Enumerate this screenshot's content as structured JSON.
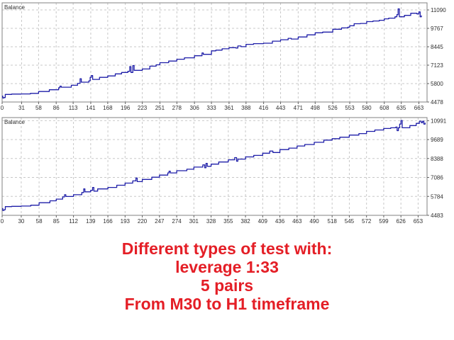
{
  "chart_data": [
    {
      "type": "line",
      "title": "Balance",
      "xlabel": "",
      "ylabel": "",
      "xlim": [
        0,
        676
      ],
      "ylim": [
        4478,
        11600
      ],
      "xticks": [
        0,
        31,
        58,
        86,
        113,
        141,
        168,
        196,
        223,
        251,
        278,
        306,
        333,
        361,
        388,
        416,
        443,
        471,
        498,
        526,
        553,
        580,
        608,
        635,
        663
      ],
      "yticks": [
        4478,
        5800,
        7123,
        8445,
        9767,
        11090
      ],
      "grid": true,
      "line_color": "#1e1ea8",
      "series": [
        {
          "values": [
            [
              0,
              4900
            ],
            [
              1,
              4770
            ],
            [
              3,
              4800
            ],
            [
              5,
              5020
            ],
            [
              15,
              5050
            ],
            [
              30,
              5060
            ],
            [
              45,
              5100
            ],
            [
              58,
              5230
            ],
            [
              75,
              5360
            ],
            [
              90,
              5500
            ],
            [
              92,
              5620
            ],
            [
              94,
              5540
            ],
            [
              110,
              5680
            ],
            [
              120,
              5820
            ],
            [
              124,
              6150
            ],
            [
              126,
              5900
            ],
            [
              138,
              6000
            ],
            [
              140,
              6250
            ],
            [
              142,
              6380
            ],
            [
              144,
              6100
            ],
            [
              155,
              6250
            ],
            [
              168,
              6350
            ],
            [
              180,
              6500
            ],
            [
              190,
              6600
            ],
            [
              200,
              6680
            ],
            [
              203,
              7020
            ],
            [
              205,
              6600
            ],
            [
              208,
              7100
            ],
            [
              210,
              6750
            ],
            [
              223,
              6850
            ],
            [
              235,
              7050
            ],
            [
              245,
              7150
            ],
            [
              251,
              7300
            ],
            [
              265,
              7420
            ],
            [
              278,
              7550
            ],
            [
              290,
              7650
            ],
            [
              306,
              7800
            ],
            [
              318,
              8000
            ],
            [
              320,
              7900
            ],
            [
              333,
              8150
            ],
            [
              340,
              8200
            ],
            [
              350,
              8300
            ],
            [
              361,
              8380
            ],
            [
              372,
              8350
            ],
            [
              375,
              8500
            ],
            [
              380,
              8450
            ],
            [
              388,
              8620
            ],
            [
              400,
              8670
            ],
            [
              416,
              8700
            ],
            [
              430,
              8850
            ],
            [
              443,
              8950
            ],
            [
              455,
              9050
            ],
            [
              460,
              9000
            ],
            [
              471,
              9150
            ],
            [
              485,
              9300
            ],
            [
              498,
              9450
            ],
            [
              510,
              9500
            ],
            [
              526,
              9700
            ],
            [
              540,
              9800
            ],
            [
              550,
              9850
            ],
            [
              553,
              9950
            ],
            [
              560,
              10100
            ],
            [
              570,
              10120
            ],
            [
              580,
              10250
            ],
            [
              590,
              10300
            ],
            [
              600,
              10350
            ],
            [
              608,
              10450
            ],
            [
              615,
              10500
            ],
            [
              625,
              10600
            ],
            [
              628,
              10750
            ],
            [
              630,
              11170
            ],
            [
              632,
              10600
            ],
            [
              640,
              10700
            ],
            [
              650,
              10850
            ],
            [
              660,
              10800
            ],
            [
              663,
              10950
            ],
            [
              665,
              10600
            ],
            [
              667,
              10700
            ]
          ]
        }
      ]
    },
    {
      "type": "line",
      "title": "Balance",
      "xlabel": "",
      "ylabel": "",
      "xlim": [
        0,
        667
      ],
      "ylim": [
        4483,
        11200
      ],
      "xticks": [
        0,
        30,
        58,
        85,
        112,
        139,
        166,
        193,
        220,
        247,
        274,
        301,
        328,
        355,
        382,
        409,
        436,
        463,
        490,
        518,
        545,
        572,
        599,
        626,
        653
      ],
      "yticks": [
        4483,
        5784,
        7086,
        8388,
        9689,
        10991
      ],
      "grid": true,
      "line_color": "#1e1ea8",
      "series": [
        {
          "values": [
            [
              0,
              4950
            ],
            [
              1,
              4820
            ],
            [
              3,
              4870
            ],
            [
              5,
              5080
            ],
            [
              15,
              5100
            ],
            [
              30,
              5120
            ],
            [
              45,
              5180
            ],
            [
              58,
              5350
            ],
            [
              75,
              5480
            ],
            [
              85,
              5600
            ],
            [
              95,
              5750
            ],
            [
              98,
              5900
            ],
            [
              100,
              5780
            ],
            [
              112,
              5900
            ],
            [
              125,
              6050
            ],
            [
              128,
              6300
            ],
            [
              130,
              6100
            ],
            [
              139,
              6200
            ],
            [
              142,
              6400
            ],
            [
              144,
              6150
            ],
            [
              150,
              6300
            ],
            [
              166,
              6400
            ],
            [
              180,
              6550
            ],
            [
              193,
              6700
            ],
            [
              205,
              6850
            ],
            [
              210,
              7050
            ],
            [
              212,
              6800
            ],
            [
              220,
              6950
            ],
            [
              235,
              7100
            ],
            [
              247,
              7250
            ],
            [
              260,
              7400
            ],
            [
              262,
              7520
            ],
            [
              264,
              7400
            ],
            [
              274,
              7550
            ],
            [
              290,
              7650
            ],
            [
              301,
              7800
            ],
            [
              315,
              7950
            ],
            [
              318,
              7750
            ],
            [
              320,
              8050
            ],
            [
              322,
              7850
            ],
            [
              328,
              8000
            ],
            [
              340,
              8150
            ],
            [
              355,
              8300
            ],
            [
              365,
              8450
            ],
            [
              368,
              8200
            ],
            [
              370,
              8350
            ],
            [
              382,
              8500
            ],
            [
              395,
              8600
            ],
            [
              409,
              8750
            ],
            [
              420,
              8900
            ],
            [
              425,
              8800
            ],
            [
              436,
              9000
            ],
            [
              450,
              9100
            ],
            [
              463,
              9250
            ],
            [
              475,
              9350
            ],
            [
              490,
              9500
            ],
            [
              505,
              9650
            ],
            [
              518,
              9750
            ],
            [
              530,
              9850
            ],
            [
              545,
              10000
            ],
            [
              560,
              10100
            ],
            [
              572,
              10250
            ],
            [
              585,
              10350
            ],
            [
              599,
              10450
            ],
            [
              610,
              10500
            ],
            [
              618,
              10550
            ],
            [
              620,
              10300
            ],
            [
              622,
              10500
            ],
            [
              624,
              10750
            ],
            [
              626,
              11000
            ],
            [
              628,
              10500
            ],
            [
              640,
              10650
            ],
            [
              650,
              10800
            ],
            [
              655,
              10950
            ],
            [
              658,
              10850
            ],
            [
              660,
              10950
            ],
            [
              662,
              10750
            ],
            [
              664,
              10850
            ]
          ]
        }
      ]
    }
  ],
  "caption": {
    "lines": [
      "Different types of test with:",
      "leverage 1:33",
      "5 pairs",
      "From M30 to H1 timeframe"
    ]
  }
}
